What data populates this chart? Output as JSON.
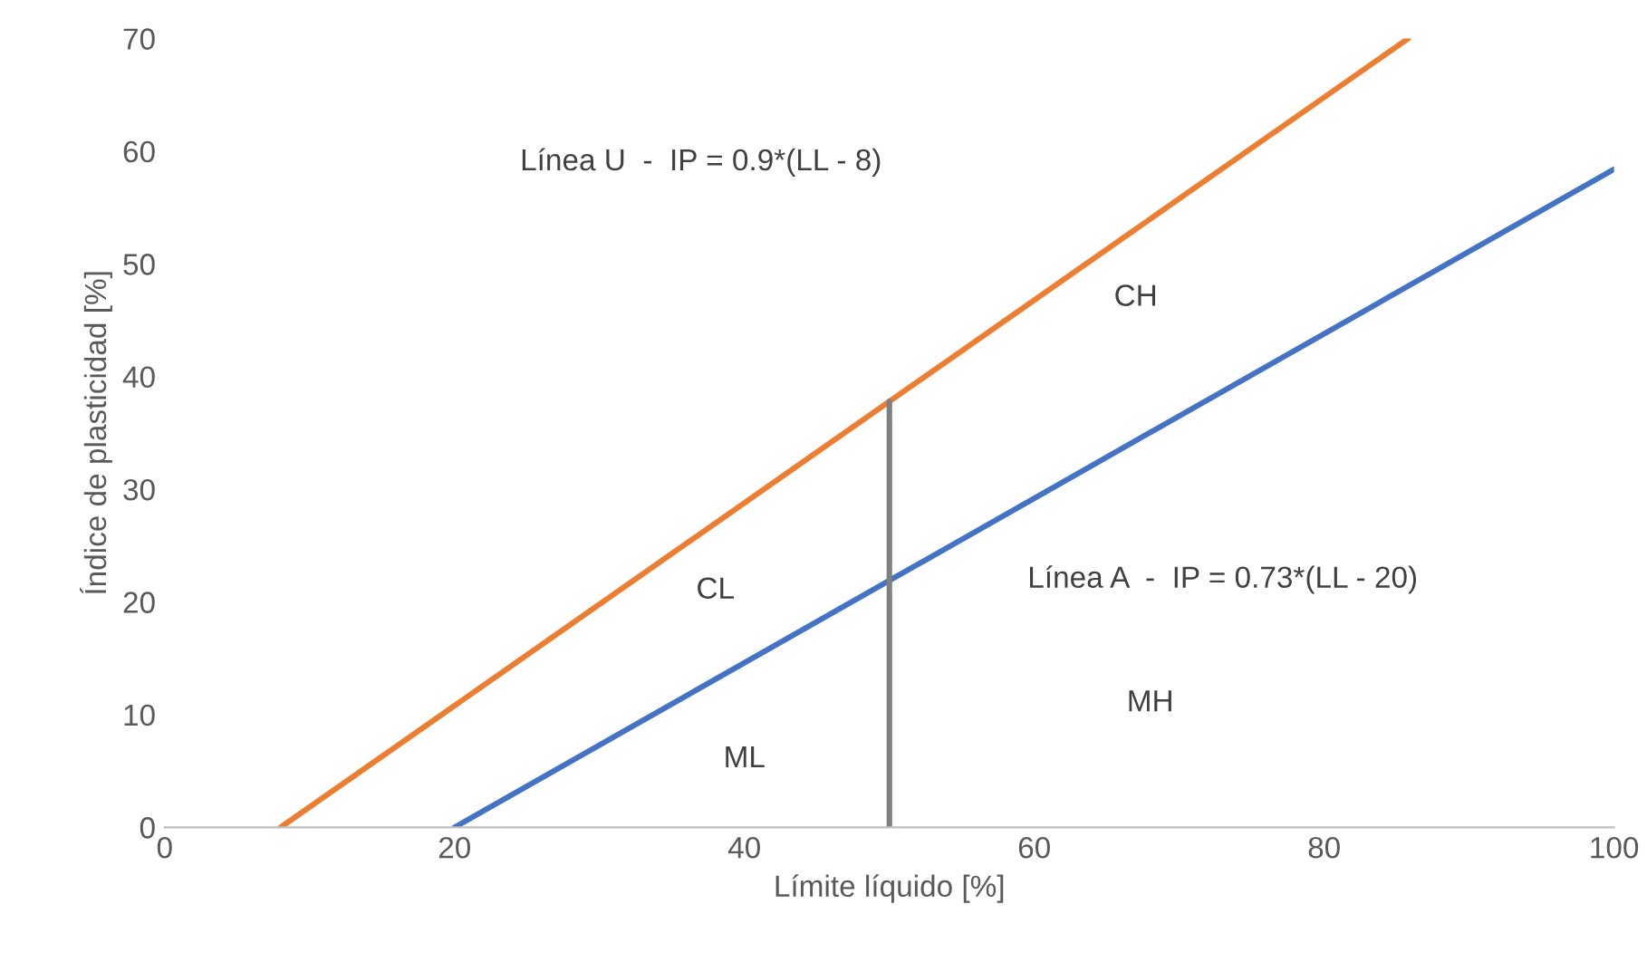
{
  "chart_data": {
    "type": "line",
    "xlabel": "Límite líquido [%]",
    "ylabel": "Índice de plasticidad [%]",
    "xlim": [
      0,
      100
    ],
    "ylim": [
      0,
      70
    ],
    "xticks": [
      0,
      20,
      40,
      60,
      80,
      100
    ],
    "yticks": [
      0,
      10,
      20,
      30,
      40,
      50,
      60,
      70
    ],
    "grid": false,
    "marker": "none",
    "series": [
      {
        "color": "#ed7d31",
        "x": [
          8,
          85.8
        ],
        "values": [
          0,
          70
        ]
      },
      {
        "color": "#4472c4",
        "x": [
          20,
          100
        ],
        "values": [
          0,
          58.4
        ]
      },
      {
        "color": "#7f7f7f",
        "x": [
          50,
          50
        ],
        "values": [
          0,
          37.8
        ]
      }
    ],
    "annotations": [
      "Línea U  -  IP = 0.9*(LL - 8)",
      "CH",
      "CL",
      "Línea A  -  IP = 0.73*(LL - 20)",
      "MH",
      "ML"
    ]
  }
}
